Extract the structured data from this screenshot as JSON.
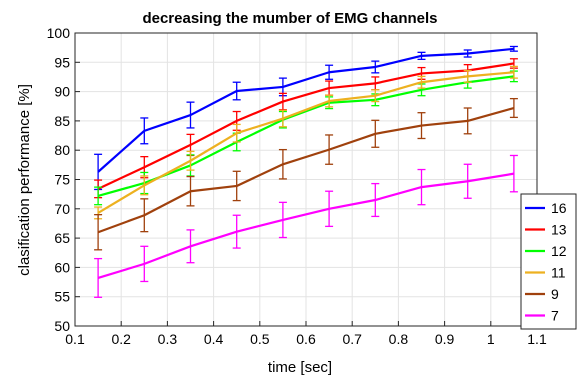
{
  "chart_data": {
    "type": "line",
    "title": "decreasing the mumber of EMG channels",
    "xlabel": "time [sec]",
    "ylabel": "clasification performance [%]",
    "xlim": [
      0.1,
      1.1
    ],
    "ylim": [
      50,
      100
    ],
    "xticks": [
      "0.1",
      "0.2",
      "0.3",
      "0.4",
      "0.5",
      "0.6",
      "0.7",
      "0.8",
      "0.9",
      "1",
      "1.1"
    ],
    "yticks": [
      "50",
      "55",
      "60",
      "65",
      "70",
      "75",
      "80",
      "85",
      "90",
      "95",
      "100"
    ],
    "grid": true,
    "legend_position": "bottom-right",
    "x": [
      0.15,
      0.25,
      0.35,
      0.45,
      0.55,
      0.65,
      0.75,
      0.85,
      0.95,
      1.05
    ],
    "series": [
      {
        "name": "16",
        "color": "#0000ff",
        "values": [
          76.3,
          83.3,
          86.0,
          90.1,
          90.8,
          93.3,
          94.2,
          96.1,
          96.5,
          97.3
        ],
        "err": [
          3.0,
          2.2,
          2.2,
          1.5,
          1.5,
          1.2,
          1.0,
          0.6,
          0.6,
          0.4
        ]
      },
      {
        "name": "13",
        "color": "#ff0000",
        "values": [
          73.4,
          77.1,
          80.9,
          85.0,
          88.3,
          90.6,
          91.4,
          93.1,
          93.6,
          94.8
        ],
        "err": [
          1.5,
          1.8,
          1.8,
          1.6,
          1.4,
          1.2,
          1.1,
          1.0,
          1.0,
          0.8
        ]
      },
      {
        "name": "12",
        "color": "#00ff00",
        "values": [
          72.2,
          74.4,
          77.4,
          81.4,
          85.2,
          88.1,
          88.6,
          90.3,
          91.6,
          92.6
        ],
        "err": [
          1.5,
          1.8,
          1.8,
          1.5,
          1.4,
          1.0,
          1.0,
          1.0,
          1.0,
          0.9
        ]
      },
      {
        "name": "11",
        "color": "#edb120",
        "values": [
          69.3,
          74.0,
          78.2,
          82.9,
          85.4,
          88.4,
          89.3,
          91.6,
          92.6,
          93.3
        ],
        "err": [
          1.0,
          1.6,
          1.6,
          1.5,
          1.4,
          1.0,
          1.0,
          1.0,
          1.0,
          1.0
        ]
      },
      {
        "name": "9",
        "color": "#a0410d",
        "values": [
          66.0,
          68.9,
          73.0,
          73.9,
          77.6,
          80.1,
          82.8,
          84.2,
          85.0,
          87.2
        ],
        "err": [
          3.0,
          2.8,
          2.5,
          2.5,
          2.5,
          2.5,
          2.3,
          2.2,
          2.2,
          1.6
        ]
      },
      {
        "name": "7",
        "color": "#ff00ff",
        "values": [
          58.2,
          60.6,
          63.6,
          66.1,
          68.1,
          70.0,
          71.5,
          73.7,
          74.7,
          76.0
        ],
        "err": [
          3.3,
          3.0,
          2.8,
          2.8,
          3.0,
          3.0,
          2.8,
          3.0,
          2.9,
          3.1
        ]
      }
    ]
  }
}
